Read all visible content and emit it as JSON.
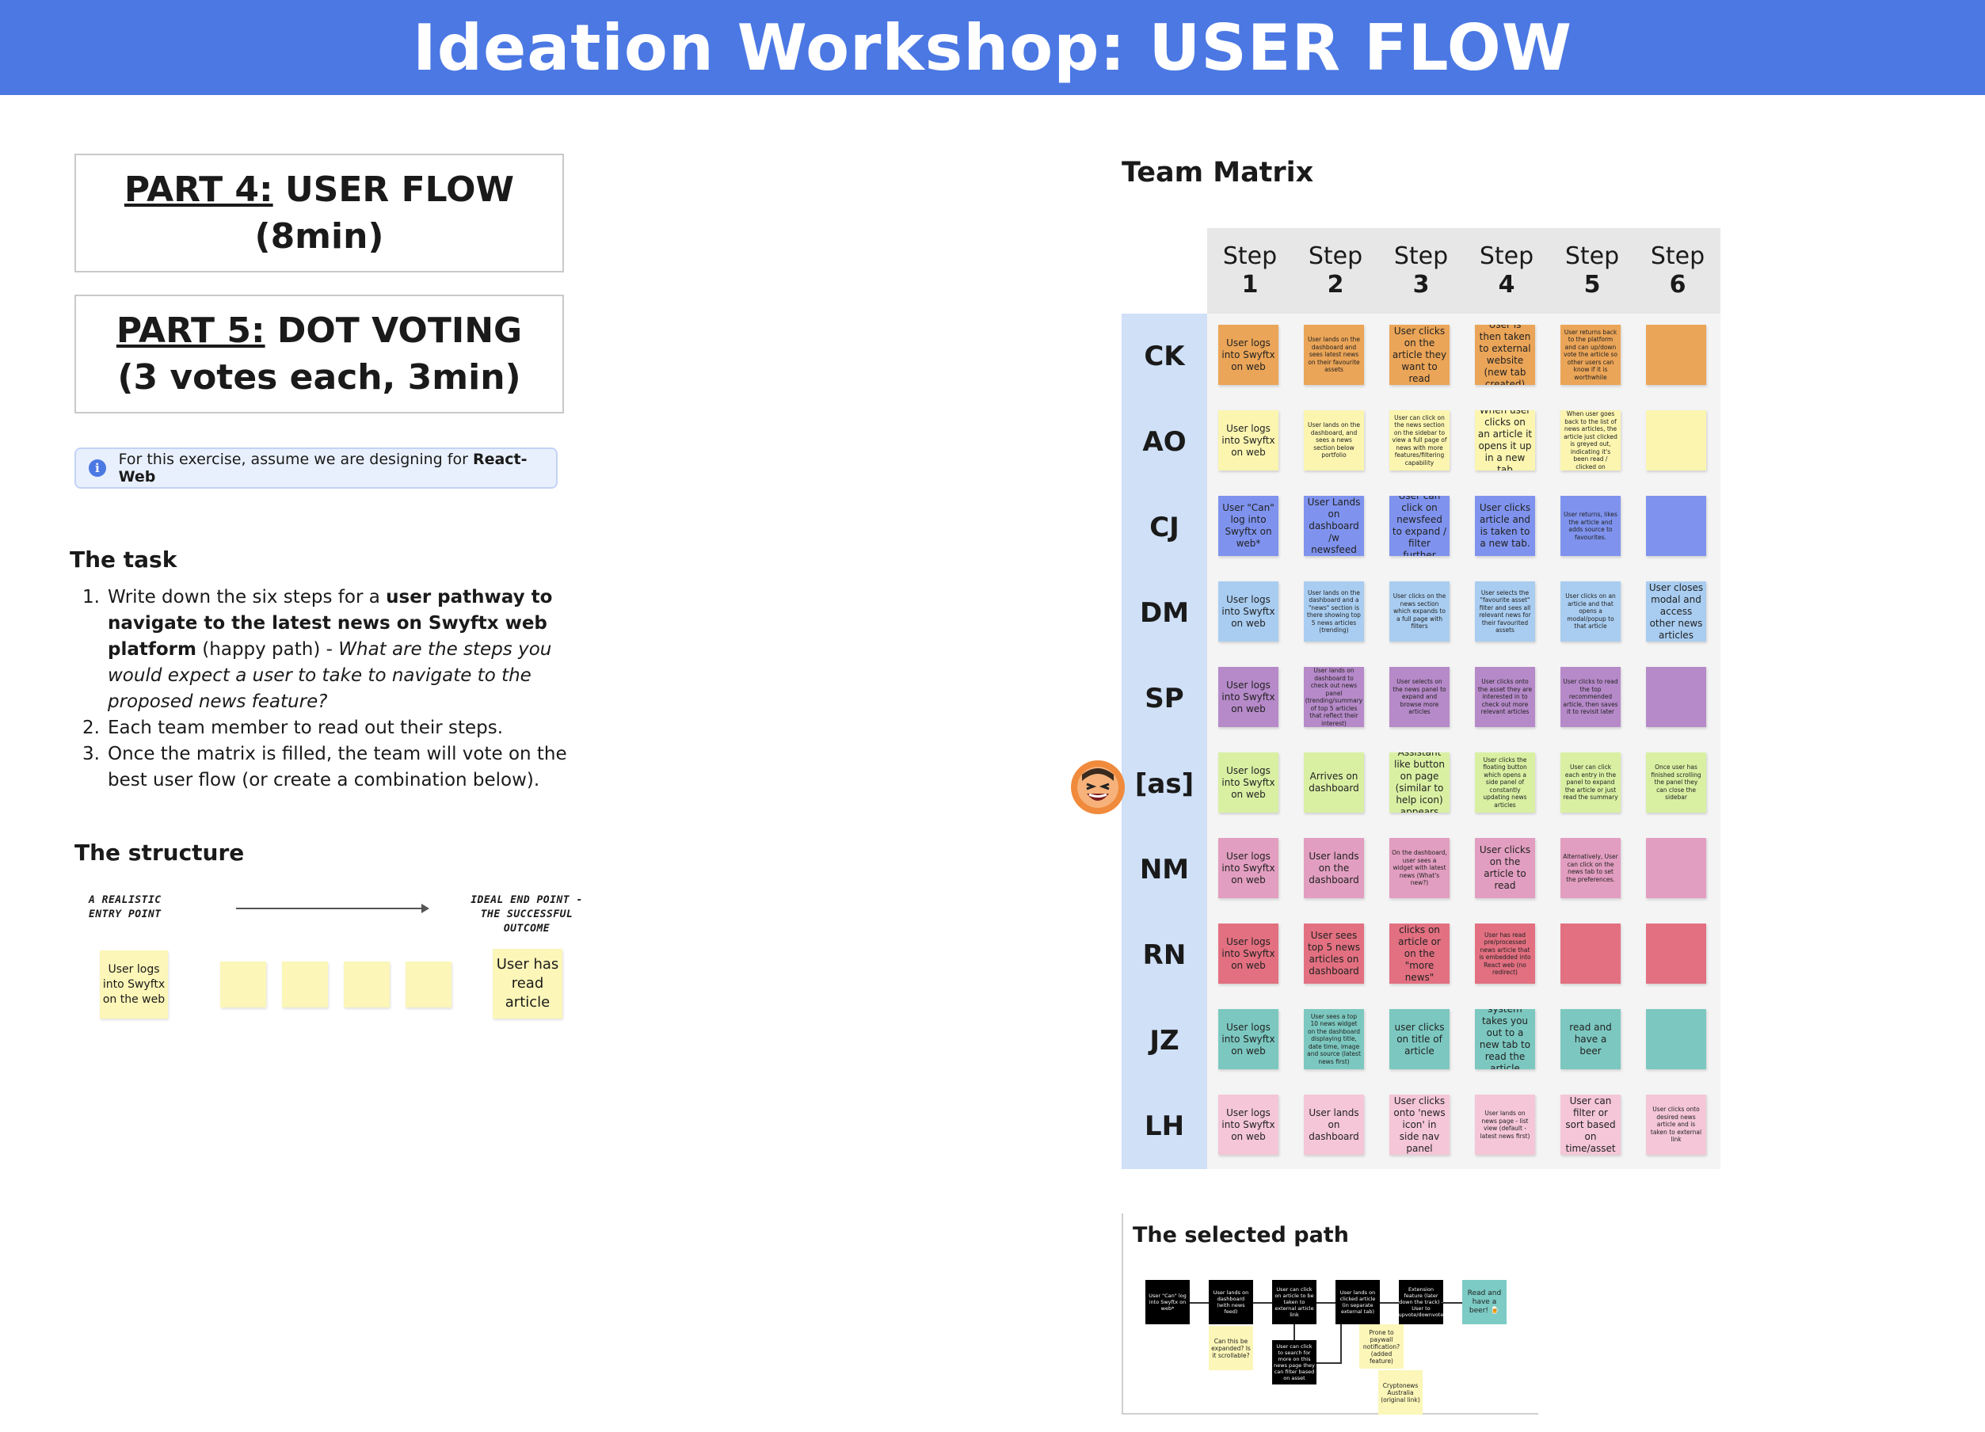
{
  "header": {
    "title": "Ideation Workshop: USER FLOW"
  },
  "parts": {
    "part4": {
      "prefix": "PART 4:",
      "text": " USER FLOW (8min)"
    },
    "part5": {
      "prefix": "PART 5:",
      "text": " DOT VOTING (3 votes each, 3min)"
    }
  },
  "info_banner": {
    "text_before": "For this exercise, assume we are designing for ",
    "text_bold": "React-Web"
  },
  "task": {
    "heading": "The task",
    "items": [
      {
        "num": "1.",
        "pre": "Write down the six steps for a ",
        "bold": "user pathway to navigate to the latest news on Swyftx web platform",
        "mid": " (happy path) - ",
        "italic": "What are the steps you would expect a user to take to navigate to the proposed news feature?"
      },
      {
        "num": "2.",
        "text": "Each team member to read out their steps."
      },
      {
        "num": "3.",
        "text": "Once the matrix is filled, the team will vote on the best user flow (or create a combination below)."
      }
    ]
  },
  "structure": {
    "heading": "The structure",
    "entry_label": "A REALISTIC ENTRY POINT",
    "end_label": "IDEAL END POINT - THE SUCCESSFUL OUTCOME",
    "start_note": "User logs into Swyftx on the web",
    "end_note": "User has read article"
  },
  "matrix": {
    "title": "Team Matrix",
    "steps": [
      {
        "word": "Step",
        "num": "1"
      },
      {
        "word": "Step",
        "num": "2"
      },
      {
        "word": "Step",
        "num": "3"
      },
      {
        "word": "Step",
        "num": "4"
      },
      {
        "word": "Step",
        "num": "5"
      },
      {
        "word": "Step",
        "num": "6"
      }
    ],
    "rows": [
      {
        "label": "CK",
        "color": "#eba558",
        "cells": [
          "User logs into Swyftx on web",
          "User lands on the dashboard and sees latest news on their favourite assets",
          "User clicks on the article they want to read",
          "User is then taken to external website (new tab created)",
          "User returns back to the platform and can up/down vote the article so other users can know if it is worthwhile",
          ""
        ]
      },
      {
        "label": "AO",
        "color": "#fbf5b0",
        "cells": [
          "User logs into Swyftx on web",
          "User lands on the dashboard, and sees a news section below portfolio",
          "User can click on the news section on the sidebar to view a full page of news with more features/filtering capability",
          "When user clicks on an article it opens it up in a new tab",
          "When user goes back to the list of news articles, the article just clicked is greyed out, indicating it's been read / clicked on",
          ""
        ]
      },
      {
        "label": "CJ",
        "color": "#7f93ee",
        "cells": [
          "User \"Can\" log into Swyftx on web*",
          "User Lands on dashboard /w newsfeed",
          "User can click on newsfeed to expand / filter further",
          "User clicks article and is taken to a new tab.",
          "User returns, likes the article and adds source to favourites.",
          ""
        ]
      },
      {
        "label": "DM",
        "color": "#a9cdf1",
        "cells": [
          "User logs into Swyftx on web",
          "User lands on the dashboard and a \"news\" section is there showing top 5 news articles (trending)",
          "User clicks on the news section which expands to a full page with filters",
          "User selects the \"favourite asset\" filter and sees all relevant news for their favourited assets",
          "User clicks on an article and that opens a modal/popup to that article",
          "User closes modal and access other news articles"
        ]
      },
      {
        "label": "SP",
        "color": "#b68ac9",
        "cells": [
          "User logs into Swyftx on web",
          "User lands on dashboard to check out news panel (trending/summary of top 5 articles that reflect their interest)",
          "User selects on the news panel to expand and browse more articles",
          "User clicks onto the asset they are interested in to check out more relevant articles",
          "User clicks to read the top recommended article, then saves it to revisit later",
          ""
        ]
      },
      {
        "label": "[as]",
        "color": "#d9f0a3",
        "cells": [
          "User logs into Swyftx on web",
          "Arrives on dashboard",
          "Assistant like button on page (similar to help icon) appears",
          "User clicks the floating button which opens a side panel of constantly updating news articles",
          "User can click each entry in the panel to expand the article or just read the summary",
          "Once user has finished scrolling the panel they can close the sidebar"
        ]
      },
      {
        "label": "NM",
        "color": "#e29ec0",
        "cells": [
          "User logs into Swyftx on web",
          "User lands on the dashboard",
          "On the dashboard, user sees a widget with latest news (What's new?)",
          "User clicks on the article to read",
          "Alternatively, User can click on the news tab to set the preferences.",
          ""
        ]
      },
      {
        "label": "RN",
        "color": "#e27080",
        "cells": [
          "User logs into Swyftx on web",
          "User sees top 5 news articles on dashboard",
          "User either clicks on article or on the \"more news\" button",
          "User has read pre/processed news article that is embedded into React web (no redirect)",
          "",
          ""
        ]
      },
      {
        "label": "JZ",
        "color": "#7cc8c0",
        "cells": [
          "User logs into Swyftx on web",
          "User sees a top 10 news widget on the dashboard displaying title, date time, image and source (latest news first)",
          "user clicks on title of article",
          "system takes you out to a new tab to read the article",
          "read and have a beer",
          ""
        ]
      },
      {
        "label": "LH",
        "color": "#f4c6d8",
        "cells": [
          "User logs into Swyftx on web",
          "User lands on dashboard",
          "User clicks onto 'news icon' in side nav panel",
          "User lands on news page - list view (default - latest news first)",
          "User can filter or sort based on time/asset",
          "User clicks onto desired news article and is taken to external link"
        ]
      }
    ]
  },
  "selected_path": {
    "title": "The selected path",
    "steps": [
      "User \"Can\" log into Swyftx on web*",
      "User lands on dashboard (with news feed)",
      "User can click on article to be taken to external article link",
      "User lands on clicked article (in separate external tab)",
      "Extension feature (later down the track) - User to upvote/downvote",
      "Read and have a beer! 🍺"
    ],
    "notes": [
      "Can this be expanded? Is it scrollable?",
      "User can click to search for more on this news page they can filter based on asset",
      "Prone to paywall notification? (added feature)",
      "Cryptonews Australia (original link)"
    ]
  }
}
